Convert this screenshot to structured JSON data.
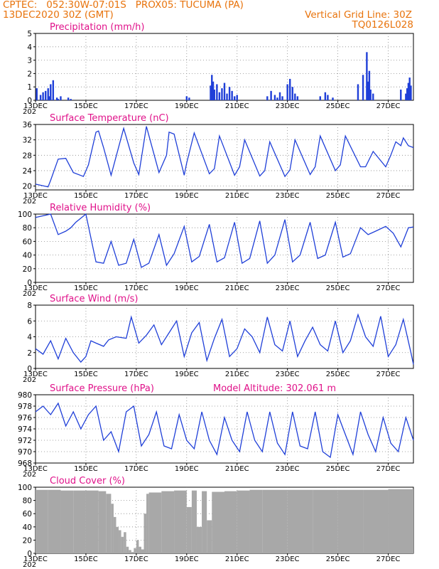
{
  "header": {
    "left_line1": "CPTEC:   052:30W-07:01S   PROX05: TUCUMA (PA)",
    "left_line2": "13DEC2020 30Z (GMT)",
    "right_line1": "Vertical Grid Line: 30Z",
    "right_line2": "TQ0126L028",
    "colors": {
      "header": "#e8730c",
      "title": "#e0128a",
      "series": "#1f3fd8",
      "cloud": "#a8a8a8"
    }
  },
  "x_axis": {
    "labels": [
      "13DEC",
      "15DEC",
      "17DEC",
      "19DEC",
      "21DEC",
      "23DEC",
      "25DEC",
      "27DEC"
    ],
    "sublabel": "202",
    "range_days": [
      0,
      15
    ]
  },
  "chart_data": [
    {
      "type": "bar",
      "title": "Precipitation (mm/h)",
      "ylim": [
        0,
        5
      ],
      "yticks": [
        0,
        1,
        2,
        3,
        4,
        5
      ],
      "series": [
        {
          "x": [
            0.05,
            0.2,
            0.3,
            0.4,
            0.5,
            0.55,
            0.6,
            0.7,
            0.85,
            0.9,
            1.0,
            1.3,
            1.4,
            6.0,
            6.1,
            6.95,
            7.0,
            7.05,
            7.1,
            7.2,
            7.3,
            7.4,
            7.5,
            7.6,
            7.7,
            7.8,
            7.9,
            8.0,
            9.2,
            9.35,
            9.5,
            9.6,
            9.7,
            9.8,
            10.0,
            10.1,
            10.2,
            10.3,
            10.4,
            11.3,
            11.5,
            11.6,
            11.8,
            12.8,
            13.0,
            13.15,
            13.2,
            13.25,
            13.3,
            13.4,
            14.5,
            14.7,
            14.75,
            14.8,
            14.85,
            14.9
          ],
          "values": [
            0.9,
            0.4,
            0.6,
            0.7,
            0.9,
            0.3,
            1.2,
            1.5,
            0.2,
            0.1,
            0.3,
            0.2,
            0.1,
            0.3,
            0.2,
            1.1,
            1.9,
            1.4,
            0.8,
            1.2,
            0.6,
            0.9,
            1.3,
            0.5,
            1.0,
            0.7,
            0.3,
            0.4,
            0.3,
            0.7,
            0.4,
            0.2,
            0.6,
            0.3,
            1.2,
            1.6,
            1.0,
            0.5,
            0.3,
            0.3,
            0.6,
            0.4,
            0.2,
            1.2,
            1.9,
            3.6,
            1.4,
            2.2,
            0.8,
            0.5,
            0.8,
            0.5,
            0.9,
            1.3,
            1.7,
            1.1
          ]
        }
      ]
    },
    {
      "type": "line",
      "title": "Surface Temperature (nC)",
      "ylim": [
        19,
        36
      ],
      "yticks": [
        20,
        24,
        28,
        32,
        36
      ],
      "series": [
        {
          "x": [
            0,
            0.5,
            0.6,
            0.9,
            1.2,
            1.5,
            1.9,
            2.1,
            2.4,
            2.5,
            2.7,
            3.0,
            3.5,
            3.9,
            4.1,
            4.4,
            4.9,
            5.2,
            5.3,
            5.5,
            5.9,
            6.0,
            6.3,
            6.9,
            7.1,
            7.3,
            7.9,
            8.1,
            8.3,
            8.9,
            9.1,
            9.3,
            9.9,
            10.1,
            10.3,
            10.9,
            11.1,
            11.3,
            11.9,
            12.1,
            12.3,
            12.9,
            13.1,
            13.4,
            13.9,
            14.1,
            14.3,
            14.5,
            14.6,
            14.8,
            15
          ],
          "values": [
            20.5,
            19.8,
            21.5,
            27.0,
            27.2,
            23.5,
            22.5,
            25.5,
            34.0,
            34.3,
            30.0,
            22.8,
            35.0,
            26.0,
            23.0,
            35.5,
            23.5,
            28.0,
            34.0,
            33.5,
            22.8,
            26.0,
            33.8,
            23.2,
            24.5,
            33.0,
            22.8,
            25.0,
            32.0,
            22.6,
            24.0,
            31.5,
            22.5,
            24.2,
            32.0,
            23.0,
            25.0,
            33.0,
            24.0,
            25.5,
            33.0,
            25.0,
            25.0,
            29.0,
            25.0,
            28.0,
            31.5,
            30.5,
            32.5,
            30.5,
            30.0
          ]
        }
      ]
    },
    {
      "type": "line",
      "title": "Relative Humidity (%)",
      "ylim": [
        0,
        100
      ],
      "yticks": [
        0,
        20,
        40,
        60,
        80,
        100
      ],
      "series": [
        {
          "x": [
            0,
            0.6,
            0.9,
            1.2,
            1.4,
            1.6,
            2.0,
            2.4,
            2.7,
            3.0,
            3.3,
            3.6,
            3.9,
            4.2,
            4.5,
            4.9,
            5.2,
            5.5,
            5.9,
            6.2,
            6.5,
            6.9,
            7.2,
            7.5,
            7.9,
            8.2,
            8.5,
            8.9,
            9.2,
            9.5,
            9.9,
            10.2,
            10.5,
            10.9,
            11.2,
            11.5,
            11.9,
            12.2,
            12.5,
            12.9,
            13.2,
            13.5,
            13.9,
            14.2,
            14.5,
            14.8,
            15
          ],
          "values": [
            95,
            100,
            70,
            75,
            80,
            88,
            100,
            30,
            28,
            60,
            25,
            28,
            63,
            22,
            28,
            70,
            25,
            42,
            82,
            30,
            38,
            85,
            30,
            36,
            88,
            28,
            35,
            90,
            28,
            40,
            92,
            30,
            40,
            88,
            35,
            40,
            88,
            37,
            42,
            80,
            70,
            75,
            82,
            72,
            52,
            80,
            81
          ]
        }
      ]
    },
    {
      "type": "line",
      "title": "Surface Wind (m/s)",
      "ylim": [
        0,
        8
      ],
      "yticks": [
        0,
        2,
        4,
        6,
        8
      ],
      "series": [
        {
          "x": [
            0,
            0.3,
            0.6,
            0.9,
            1.2,
            1.5,
            1.8,
            2.0,
            2.2,
            2.4,
            2.7,
            2.9,
            3.2,
            3.6,
            3.8,
            4.1,
            4.4,
            4.7,
            5.0,
            5.3,
            5.6,
            5.9,
            6.2,
            6.5,
            6.8,
            7.1,
            7.4,
            7.7,
            8.0,
            8.3,
            8.6,
            8.9,
            9.2,
            9.5,
            9.8,
            10.1,
            10.4,
            10.7,
            11.0,
            11.3,
            11.6,
            11.9,
            12.2,
            12.5,
            12.8,
            13.1,
            13.4,
            13.7,
            14.0,
            14.3,
            14.6,
            14.9,
            15
          ],
          "values": [
            2.5,
            1.8,
            3.5,
            1.2,
            3.8,
            2.0,
            0.8,
            1.5,
            3.5,
            3.2,
            2.8,
            3.6,
            4.0,
            3.8,
            6.5,
            3.2,
            4.2,
            5.5,
            3.0,
            4.5,
            6.0,
            1.5,
            4.5,
            5.8,
            1.0,
            3.8,
            6.2,
            1.5,
            2.5,
            5.0,
            4.0,
            2.0,
            6.5,
            3.0,
            2.2,
            6.0,
            1.5,
            3.5,
            5.2,
            3.0,
            2.2,
            6.0,
            2.0,
            3.5,
            6.8,
            4.0,
            2.8,
            6.6,
            1.5,
            3.0,
            6.2,
            2.0,
            0.5
          ]
        }
      ]
    },
    {
      "type": "line",
      "title": "Surface Pressure (hPa)",
      "annotation": "Model Altitude: 302.061 m",
      "ylim": [
        968,
        980
      ],
      "yticks": [
        968,
        970,
        972,
        974,
        976,
        978,
        980
      ],
      "series": [
        {
          "x": [
            0,
            0.3,
            0.6,
            0.9,
            1.2,
            1.5,
            1.8,
            2.1,
            2.4,
            2.7,
            3.0,
            3.3,
            3.6,
            3.9,
            4.2,
            4.5,
            4.8,
            5.1,
            5.4,
            5.7,
            6.0,
            6.3,
            6.6,
            6.9,
            7.2,
            7.5,
            7.8,
            8.1,
            8.4,
            8.7,
            9.0,
            9.3,
            9.6,
            9.9,
            10.2,
            10.5,
            10.8,
            11.1,
            11.4,
            11.7,
            12.0,
            12.3,
            12.6,
            12.9,
            13.2,
            13.5,
            13.8,
            14.1,
            14.4,
            14.7,
            15
          ],
          "values": [
            977,
            978,
            976.5,
            978.5,
            974.5,
            977,
            974,
            976.5,
            978,
            972,
            973.5,
            970,
            977,
            978,
            971,
            973,
            977,
            971,
            970.5,
            976.5,
            972,
            970.5,
            977,
            972,
            969.5,
            976,
            972,
            970,
            977,
            972,
            970,
            977,
            971.5,
            969.5,
            977,
            971,
            970.5,
            977,
            970,
            969,
            976.5,
            973,
            969.5,
            977,
            973,
            970,
            976,
            971.5,
            970,
            976,
            972
          ]
        }
      ]
    },
    {
      "type": "bar",
      "title": "Cloud Cover (%)",
      "ylim": [
        0,
        100
      ],
      "yticks": [
        0,
        20,
        40,
        60,
        80,
        100
      ],
      "series": [
        {
          "x": [
            0,
            0.5,
            1.0,
            1.5,
            2.0,
            2.5,
            2.8,
            3.0,
            3.1,
            3.2,
            3.3,
            3.4,
            3.5,
            3.6,
            3.7,
            3.8,
            3.9,
            4.0,
            4.1,
            4.2,
            4.3,
            4.4,
            4.5,
            5.0,
            5.5,
            6.0,
            6.2,
            6.4,
            6.6,
            6.8,
            7.0,
            7.5,
            8.0,
            8.5,
            9.0,
            10.0,
            11.0,
            12.0,
            13.0,
            14.0,
            15
          ],
          "values": [
            96,
            96,
            95,
            95,
            95,
            94,
            90,
            75,
            55,
            40,
            35,
            25,
            32,
            10,
            5,
            2,
            8,
            20,
            10,
            6,
            60,
            90,
            92,
            94,
            95,
            70,
            95,
            40,
            94,
            50,
            93,
            94,
            95,
            96,
            96,
            96,
            96,
            96,
            96,
            97,
            96
          ]
        }
      ]
    }
  ]
}
